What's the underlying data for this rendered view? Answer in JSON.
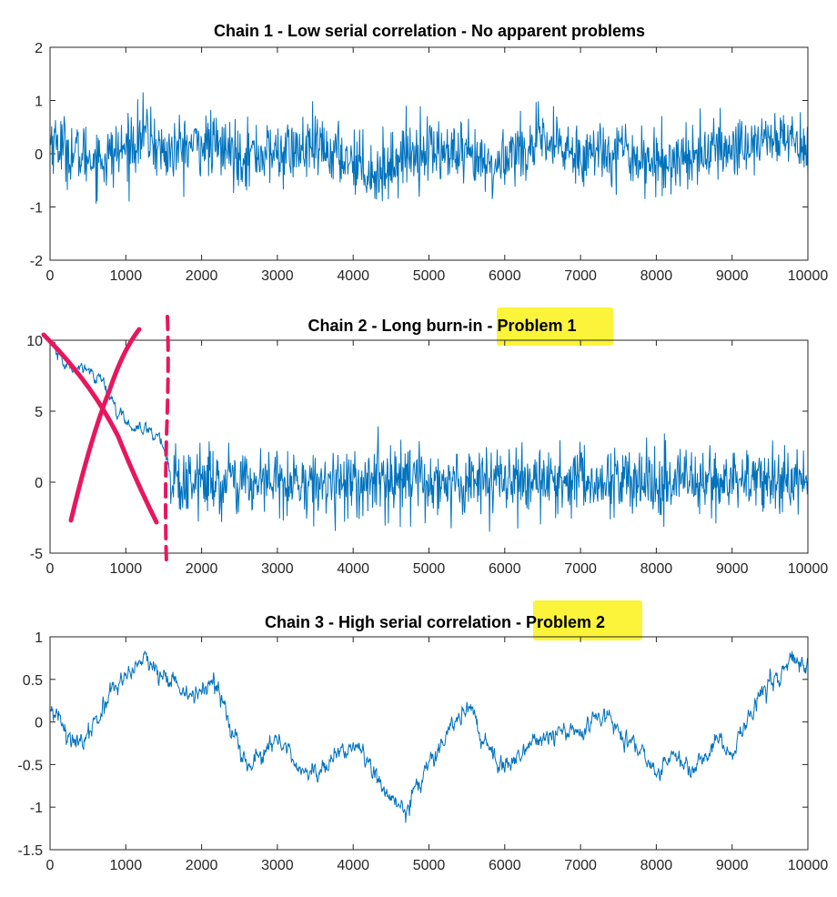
{
  "colors": {
    "line": "#0072bd",
    "highlight": "#fbf43a",
    "annotation": "#e8175d",
    "axes": "#262626"
  },
  "chart_data": [
    {
      "type": "line",
      "title_main": "Chain 1 - Low serial correlation - No apparent problems",
      "title_highlight": "",
      "xlim": [
        0,
        10000
      ],
      "ylim": [
        -2,
        2
      ],
      "x_ticks": [
        0,
        1000,
        2000,
        3000,
        4000,
        5000,
        6000,
        7000,
        8000,
        9000,
        10000
      ],
      "y_ticks": [
        -2,
        -1,
        0,
        1,
        2
      ],
      "x_tick_labels": [
        "0",
        "1000",
        "2000",
        "3000",
        "4000",
        "5000",
        "6000",
        "7000",
        "8000",
        "9000",
        "10000"
      ],
      "y_tick_labels": [
        "-2",
        "-1",
        "0",
        "1",
        "2"
      ],
      "series_profile": {
        "x": [
          0,
          300,
          700,
          1000,
          1250,
          1500,
          2000,
          2500,
          3000,
          3500,
          4000,
          4300,
          4700,
          5000,
          5500,
          5900,
          6000,
          6500,
          7000,
          7500,
          8000,
          8500,
          9000,
          9500,
          10000
        ],
        "mean": [
          0.3,
          0.0,
          -0.1,
          0.1,
          0.4,
          0.0,
          0.2,
          0.0,
          0.0,
          0.1,
          -0.1,
          -0.4,
          0.0,
          0.1,
          -0.1,
          -0.3,
          0.0,
          0.2,
          0.0,
          0.1,
          -0.2,
          0.0,
          0.1,
          0.3,
          0.2
        ],
        "spread": 0.3
      }
    },
    {
      "type": "line",
      "title_main": "Chain 2 - Long burn-in - ",
      "title_highlight": "Problem 1",
      "xlim": [
        0,
        10000
      ],
      "ylim": [
        -5,
        10
      ],
      "x_ticks": [
        0,
        1000,
        2000,
        3000,
        4000,
        5000,
        6000,
        7000,
        8000,
        9000,
        10000
      ],
      "y_ticks": [
        -5,
        0,
        5,
        10
      ],
      "x_tick_labels": [
        "0",
        "1000",
        "2000",
        "3000",
        "4000",
        "5000",
        "6000",
        "7000",
        "8000",
        "9000",
        "10000"
      ],
      "y_tick_labels": [
        "-5",
        "0",
        "5",
        "10"
      ],
      "series_profile": {
        "x": [
          0,
          100,
          300,
          500,
          700,
          800,
          1000,
          1200,
          1400,
          1550,
          1600,
          2000,
          3000,
          4000,
          5000,
          6000,
          7000,
          8000,
          9000,
          10000
        ],
        "mean": [
          10,
          9.0,
          7.8,
          8.0,
          7.0,
          5.8,
          4.2,
          3.8,
          3.4,
          2.0,
          0.0,
          0.0,
          0.0,
          0.0,
          0.0,
          0.0,
          0.0,
          0.0,
          0.0,
          0.0
        ],
        "spread": 1.2
      }
    },
    {
      "type": "line",
      "title_main": "Chain 3 - High serial correlation - ",
      "title_highlight": "Problem 2",
      "xlim": [
        0,
        10000
      ],
      "ylim": [
        -1.5,
        1
      ],
      "x_ticks": [
        0,
        1000,
        2000,
        3000,
        4000,
        5000,
        6000,
        7000,
        8000,
        9000,
        10000
      ],
      "y_ticks": [
        -1.5,
        -1,
        -0.5,
        0,
        0.5,
        1
      ],
      "x_tick_labels": [
        "0",
        "1000",
        "2000",
        "3000",
        "4000",
        "5000",
        "6000",
        "7000",
        "8000",
        "9000",
        "10000"
      ],
      "y_tick_labels": [
        "-1.5",
        "-1",
        "-0.5",
        "0",
        "0.5",
        "1"
      ],
      "series_profile": {
        "x": [
          0,
          150,
          300,
          500,
          700,
          900,
          1100,
          1250,
          1500,
          1800,
          2000,
          2200,
          2400,
          2600,
          2800,
          3000,
          3200,
          3450,
          3700,
          3900,
          4100,
          4300,
          4500,
          4700,
          4800,
          5000,
          5200,
          5400,
          5550,
          5700,
          5900,
          6100,
          6300,
          6500,
          6700,
          6900,
          7100,
          7300,
          7500,
          7700,
          7900,
          8050,
          8200,
          8400,
          8600,
          8800,
          9000,
          9200,
          9400,
          9600,
          9800,
          10000
        ],
        "mean": [
          0.1,
          0.0,
          -0.2,
          -0.2,
          0.2,
          0.4,
          0.6,
          0.75,
          0.5,
          0.35,
          0.35,
          0.45,
          -0.15,
          -0.55,
          -0.4,
          -0.2,
          -0.45,
          -0.6,
          -0.5,
          -0.3,
          -0.3,
          -0.65,
          -0.9,
          -1.1,
          -0.8,
          -0.5,
          -0.2,
          0.1,
          0.2,
          -0.2,
          -0.4,
          -0.5,
          -0.3,
          -0.2,
          -0.15,
          -0.1,
          -0.1,
          0.05,
          -0.1,
          -0.3,
          -0.5,
          -0.6,
          -0.3,
          -0.5,
          -0.55,
          -0.2,
          -0.35,
          0.1,
          0.35,
          0.5,
          0.75,
          0.6
        ],
        "spread": 0.05
      }
    }
  ]
}
